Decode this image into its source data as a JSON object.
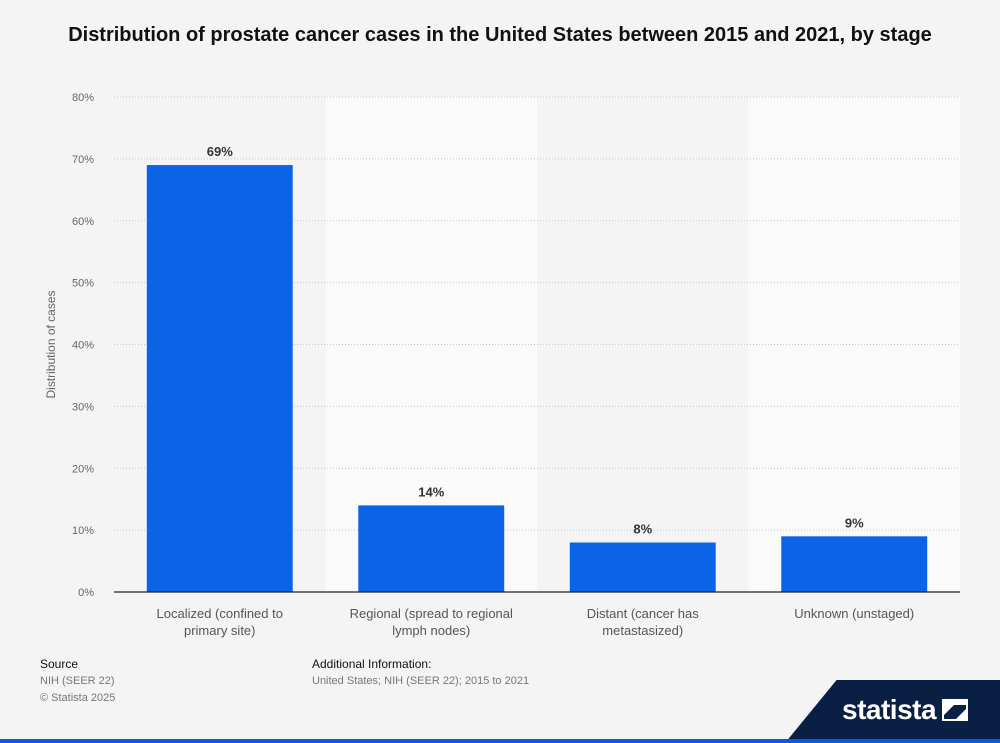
{
  "chart_data": {
    "type": "bar",
    "title": "Distribution of prostate cancer cases in the United States between 2015 and 2021, by stage",
    "categories": [
      [
        "Localized (confined to",
        "primary site)"
      ],
      [
        "Regional (spread to regional",
        "lymph nodes)"
      ],
      [
        "Distant (cancer has",
        "metastasized)"
      ],
      [
        "Unknown (unstaged)"
      ]
    ],
    "values": [
      69,
      14,
      8,
      9
    ],
    "value_labels": [
      "69%",
      "14%",
      "8%",
      "9%"
    ],
    "ylabel": "Distribution of cases",
    "xlabel": "",
    "ylim": [
      0,
      80
    ],
    "yticks": [
      0,
      10,
      20,
      30,
      40,
      50,
      60,
      70,
      80
    ],
    "ytick_labels": [
      "0%",
      "10%",
      "20%",
      "30%",
      "40%",
      "50%",
      "60%",
      "70%",
      "80%"
    ],
    "grid": true,
    "bar_color": "#0b63e5"
  },
  "footer": {
    "source_heading": "Source",
    "source_value": "NIH (SEER 22)",
    "copyright": "© Statista 2025",
    "additional_heading": "Additional Information:",
    "additional_value": "United States; NIH (SEER 22); 2015 to 2021"
  },
  "brand": {
    "name": "statista",
    "icon": "statista-logo-icon",
    "bg_color": "#0a1f44",
    "accent_color": "#0b5be0"
  }
}
